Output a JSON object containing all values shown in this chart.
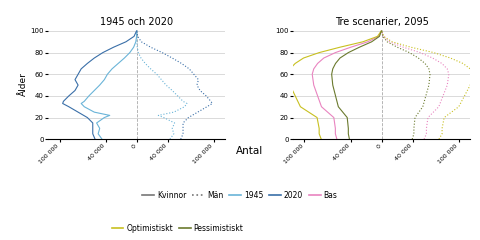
{
  "title_left": "1945 och 2020",
  "title_right": "Tre scenarier, 2095",
  "ylabel": "Ålder",
  "xlabel": "Antal",
  "xlim": 115000,
  "ylim_max": 102,
  "colors": {
    "1945": "#6ab4d8",
    "2020": "#3a6fa8",
    "bas": "#e984c0",
    "optimistiskt": "#c8c020",
    "pessimistiskt": "#6b7a2e"
  },
  "xticks": [
    -100000,
    -40000,
    0,
    40000,
    100000
  ],
  "xticklabels": [
    "100 000",
    "40 000",
    "0",
    "40 000",
    "100 000"
  ],
  "yticks": [
    0,
    20,
    40,
    60,
    80,
    100
  ],
  "grid_color": "#cccccc",
  "legend_color_kv": "#777777"
}
